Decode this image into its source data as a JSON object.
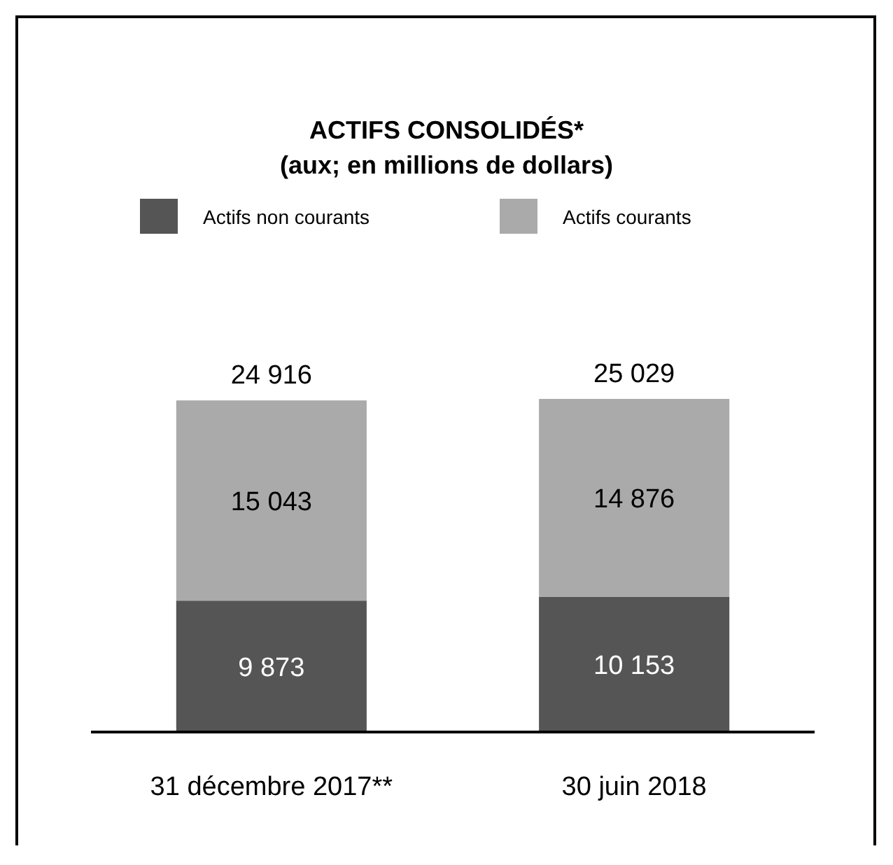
{
  "chart_data": {
    "type": "bar",
    "title": "ACTIFS CONSOLIDÉS*",
    "subtitle": "(aux; en millions de dollars)",
    "categories": [
      "31 décembre 2017**",
      "30 juin 2018"
    ],
    "stacked": true,
    "data_labels": true,
    "legend": "top",
    "totals": [
      "24 916",
      "25 029"
    ],
    "series": [
      {
        "name": "Actifs non courants",
        "color": "#555555",
        "values": [
          9873,
          10153
        ]
      },
      {
        "name": "Actifs courants",
        "color": "#aaaaaa",
        "values": [
          15043,
          14876
        ]
      }
    ]
  }
}
